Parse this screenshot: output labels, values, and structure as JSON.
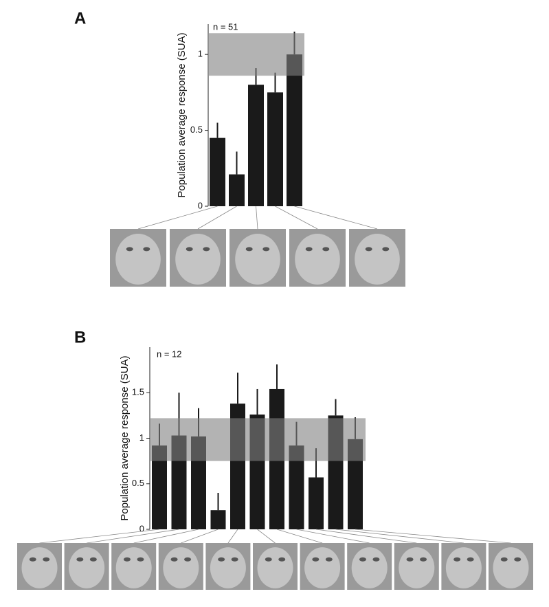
{
  "chart_data": [
    {
      "panel": "A",
      "type": "bar",
      "annotation": "n = 51",
      "ylabel": "Population average response (SUA)",
      "categories": [
        null,
        null,
        null,
        null,
        null
      ],
      "values": [
        0.45,
        0.21,
        0.8,
        0.75,
        1.0
      ],
      "errors": [
        0.1,
        0.15,
        0.11,
        0.13,
        0.15
      ],
      "color": "#1a1a1a",
      "shaded_range": [
        0.86,
        1.14
      ],
      "shaded_color": "#808080",
      "ylim": [
        0,
        1.2
      ],
      "yticks": [
        0,
        0.5,
        1
      ]
    },
    {
      "panel": "B",
      "type": "bar",
      "annotation": "n = 12",
      "ylabel": "Population average response (SUA)",
      "categories": [
        null,
        null,
        null,
        null,
        null,
        null,
        null,
        null,
        null,
        null,
        null
      ],
      "values": [
        0.92,
        1.03,
        1.02,
        0.21,
        1.38,
        1.26,
        1.54,
        0.92,
        0.57,
        1.25,
        0.99
      ],
      "errors": [
        0.24,
        0.47,
        0.31,
        0.19,
        0.34,
        0.28,
        0.27,
        0.26,
        0.32,
        0.18,
        0.24
      ],
      "color": "#1a1a1a",
      "shaded_range": [
        0.75,
        1.22
      ],
      "shaded_color": "#808080",
      "ylim": [
        0,
        2
      ],
      "yticks": [
        0,
        0.5,
        1,
        1.5
      ]
    }
  ]
}
